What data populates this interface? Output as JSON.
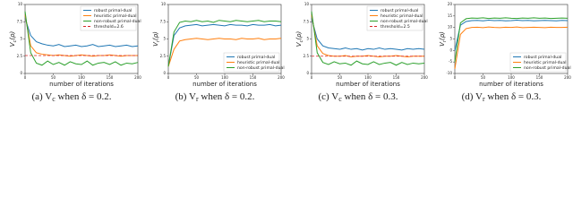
{
  "chart_data": [
    {
      "type": "line",
      "y_label": {
        "main": "V",
        "sub": "c",
        "rest": "(ρ)"
      },
      "x_label": "number of iterations",
      "caption": {
        "prefix": "(a) V",
        "sub": "c",
        "suffix": " when δ = 0.2."
      },
      "legend": "upper right",
      "xlim": [
        0,
        200
      ],
      "xticks": [
        0,
        50,
        100,
        150,
        200
      ],
      "ylim": [
        0,
        10
      ],
      "yticks": [
        0,
        2.5,
        5,
        7.5,
        10
      ],
      "x": [
        0,
        10,
        20,
        30,
        40,
        50,
        60,
        70,
        80,
        90,
        100,
        110,
        120,
        130,
        140,
        150,
        160,
        170,
        180,
        190,
        200
      ],
      "series": [
        {
          "name": "robust primal-dual",
          "color": "#1f77b4",
          "values": [
            8,
            5.5,
            4.6,
            4.3,
            4.1,
            4.0,
            4.2,
            3.9,
            4.0,
            4.1,
            3.9,
            4.0,
            4.2,
            3.9,
            4.0,
            4.1,
            3.9,
            4.0,
            4.1,
            3.9,
            4.0
          ]
        },
        {
          "name": "heuristic primal-dual",
          "color": "#ff7f0e",
          "values": [
            8.5,
            4,
            3,
            2.8,
            2.7,
            2.6,
            2.7,
            2.6,
            2.5,
            2.6,
            2.7,
            2.6,
            2.5,
            2.6,
            2.6,
            2.7,
            2.6,
            2.5,
            2.6,
            2.6,
            2.6
          ]
        },
        {
          "name": "non-robust primal-dual",
          "color": "#2ca02c",
          "values": [
            9,
            3,
            1.5,
            1.2,
            1.8,
            1.3,
            1.6,
            1.2,
            1.7,
            1.4,
            1.3,
            1.8,
            1.2,
            1.5,
            1.6,
            1.3,
            1.7,
            1.2,
            1.5,
            1.4,
            1.6
          ]
        }
      ],
      "hline": {
        "name": "threshold=2.6",
        "value": 2.6,
        "color": "#d62728"
      }
    },
    {
      "type": "line",
      "y_label": {
        "main": "V",
        "sub": "r",
        "rest": "(ρ)"
      },
      "x_label": "number of iterations",
      "caption": {
        "prefix": "(b) V",
        "sub": "r",
        "suffix": " when δ = 0.2."
      },
      "legend": "lower right",
      "xlim": [
        0,
        200
      ],
      "xticks": [
        0,
        50,
        100,
        150,
        200
      ],
      "ylim": [
        0,
        10
      ],
      "yticks": [
        0,
        2.5,
        5,
        7.5,
        10
      ],
      "x": [
        0,
        10,
        20,
        30,
        40,
        50,
        60,
        70,
        80,
        90,
        100,
        110,
        120,
        130,
        140,
        150,
        160,
        170,
        180,
        190,
        200
      ],
      "series": [
        {
          "name": "robust primal-dual",
          "color": "#1f77b4",
          "values": [
            1,
            5.5,
            6.6,
            6.9,
            7.0,
            7.1,
            6.9,
            7.0,
            7.1,
            7.0,
            6.9,
            7.1,
            7.0,
            7.0,
            6.9,
            7.1,
            7.0,
            7.0,
            7.1,
            6.9,
            7.0
          ]
        },
        {
          "name": "heuristic primal-dual",
          "color": "#ff7f0e",
          "values": [
            1,
            3.5,
            4.7,
            4.9,
            5.0,
            5.1,
            5.0,
            4.9,
            5.0,
            5.1,
            5.0,
            5.0,
            4.9,
            5.1,
            5.0,
            5.0,
            5.1,
            4.9,
            5.0,
            5.0,
            5.1
          ]
        },
        {
          "name": "non-robust primal-dual",
          "color": "#2ca02c",
          "values": [
            1,
            6,
            7.4,
            7.6,
            7.5,
            7.7,
            7.5,
            7.6,
            7.4,
            7.7,
            7.6,
            7.5,
            7.7,
            7.6,
            7.5,
            7.6,
            7.7,
            7.5,
            7.6,
            7.6,
            7.5
          ]
        }
      ]
    },
    {
      "type": "line",
      "y_label": {
        "main": "V",
        "sub": "c",
        "rest": "(ρ)"
      },
      "x_label": "number of iterations",
      "caption": {
        "prefix": "(c) V",
        "sub": "c",
        "suffix": " when δ = 0.3."
      },
      "legend": "upper right",
      "xlim": [
        0,
        200
      ],
      "xticks": [
        0,
        50,
        100,
        150,
        200
      ],
      "ylim": [
        0,
        10
      ],
      "yticks": [
        0,
        2.5,
        5,
        7.5,
        10
      ],
      "x": [
        0,
        10,
        20,
        30,
        40,
        50,
        60,
        70,
        80,
        90,
        100,
        110,
        120,
        130,
        140,
        150,
        160,
        170,
        180,
        190,
        200
      ],
      "series": [
        {
          "name": "robust primal-dual",
          "color": "#1f77b4",
          "values": [
            8,
            5,
            4,
            3.7,
            3.6,
            3.5,
            3.7,
            3.5,
            3.6,
            3.4,
            3.6,
            3.5,
            3.7,
            3.5,
            3.6,
            3.5,
            3.4,
            3.6,
            3.5,
            3.6,
            3.5
          ]
        },
        {
          "name": "heuristic primal-dual",
          "color": "#ff7f0e",
          "values": [
            8.5,
            4,
            2.9,
            2.6,
            2.5,
            2.5,
            2.6,
            2.4,
            2.5,
            2.5,
            2.6,
            2.5,
            2.4,
            2.5,
            2.5,
            2.6,
            2.5,
            2.4,
            2.5,
            2.5,
            2.5
          ]
        },
        {
          "name": "non-robust primal-dual",
          "color": "#2ca02c",
          "values": [
            9,
            3,
            1.6,
            1.3,
            1.7,
            1.4,
            1.5,
            1.2,
            1.8,
            1.4,
            1.3,
            1.7,
            1.3,
            1.5,
            1.6,
            1.2,
            1.6,
            1.3,
            1.5,
            1.4,
            1.5
          ]
        }
      ],
      "hline": {
        "name": "threshold=2.5",
        "value": 2.5,
        "color": "#d62728"
      }
    },
    {
      "type": "line",
      "y_label": {
        "main": "V",
        "sub": "r",
        "rest": "(ρ)"
      },
      "x_label": "number of iterations",
      "caption": {
        "prefix": "(d) V",
        "sub": "r",
        "suffix": " when δ = 0.3."
      },
      "legend": "lower right",
      "xlim": [
        0,
        200
      ],
      "xticks": [
        0,
        50,
        100,
        150,
        200
      ],
      "ylim": [
        -10,
        20
      ],
      "yticks": [
        -10,
        -5,
        0,
        5,
        10,
        15,
        20
      ],
      "x": [
        0,
        10,
        20,
        30,
        40,
        50,
        60,
        70,
        80,
        90,
        100,
        110,
        120,
        130,
        140,
        150,
        160,
        170,
        180,
        190,
        200
      ],
      "series": [
        {
          "name": "robust primal-dual",
          "color": "#1f77b4",
          "values": [
            0,
            11,
            12.6,
            13,
            13.1,
            12.9,
            13.2,
            13,
            13.1,
            12.9,
            13,
            13.2,
            13,
            13.1,
            12.9,
            13,
            13.1,
            13,
            12.9,
            13.1,
            13
          ]
        },
        {
          "name": "heuristic primal-dual",
          "color": "#ff7f0e",
          "values": [
            -8,
            7,
            9.5,
            10,
            10.1,
            9.9,
            10.2,
            10,
            9.9,
            10.1,
            10,
            10.2,
            9.9,
            10,
            10.1,
            10,
            9.9,
            10.1,
            10,
            10,
            10.1
          ]
        },
        {
          "name": "non-robust primal-dual",
          "color": "#2ca02c",
          "values": [
            -5,
            12,
            13.8,
            14.1,
            14,
            14.2,
            13.9,
            14.1,
            14,
            14.2,
            14,
            13.9,
            14.1,
            14,
            14.2,
            14,
            14.1,
            13.9,
            14,
            14.1,
            14
          ]
        }
      ]
    }
  ]
}
